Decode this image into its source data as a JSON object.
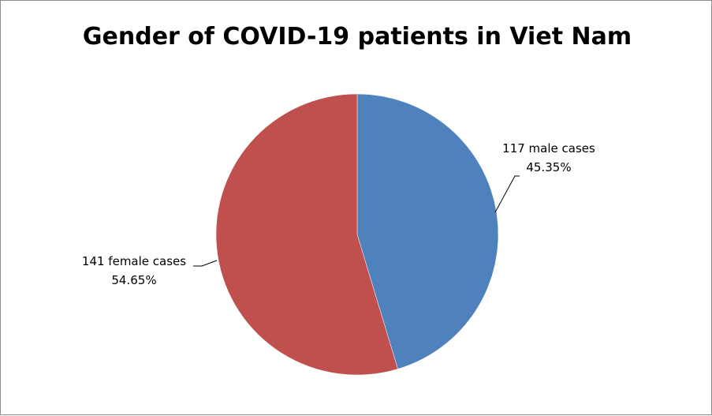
{
  "chart_data": {
    "type": "pie",
    "title": "Gender of COVID-19 patients in Viet Nam",
    "slices": [
      {
        "label": "117 male cases",
        "percent_label": "45.35%",
        "value": 117,
        "percent": 45.35,
        "color": "#4f81bd"
      },
      {
        "label": "141 female cases",
        "percent_label": "54.65%",
        "value": 141,
        "percent": 54.65,
        "color": "#c0504d"
      }
    ],
    "start_angle": "12 o'clock",
    "direction": "clockwise",
    "legend": "none"
  }
}
